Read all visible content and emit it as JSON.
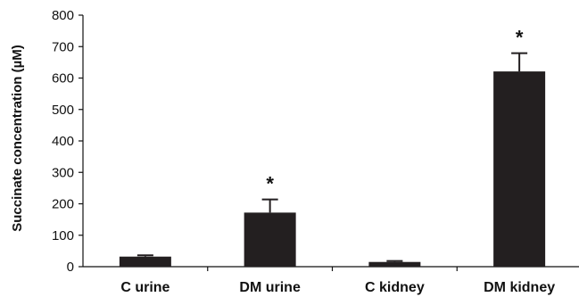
{
  "chart_data": {
    "type": "bar",
    "categories": [
      "C urine",
      "DM urine",
      "C kidney",
      "DM kidney"
    ],
    "values": [
      32,
      172,
      15,
      621
    ],
    "error": [
      4,
      42,
      3,
      58
    ],
    "annotations": [
      "",
      "*",
      "",
      "*"
    ],
    "ylabel": "Succinate concentration (µM)",
    "xlabel": "",
    "ylim": [
      0,
      800
    ],
    "yticks": [
      "0",
      "100",
      "200",
      "300",
      "400",
      "500",
      "600",
      "700",
      "800"
    ],
    "grid": false,
    "bar_color": "#231f20"
  }
}
